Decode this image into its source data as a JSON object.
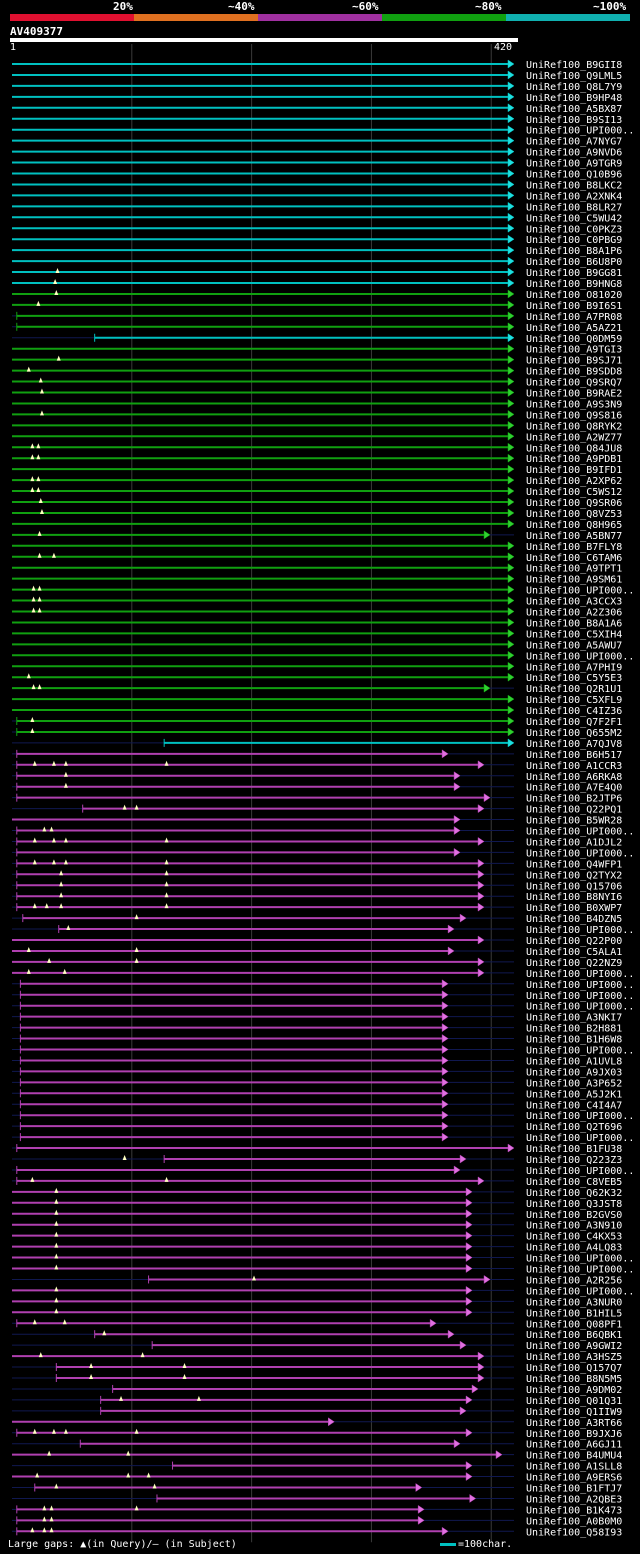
{
  "legend": {
    "labels": [
      "20%",
      "~40%",
      "~60%",
      "~80%",
      "~100%"
    ],
    "colors": [
      "#e01030",
      "#e07020",
      "#a030a0",
      "#10a010",
      "#10b0b0"
    ]
  },
  "query": {
    "name": "AV409377",
    "start": "1",
    "end": "420"
  },
  "footer": {
    "gaps": "Large gaps: ▲(in Query)/— (in Subject)",
    "scale": "=100char."
  },
  "chart_data": {
    "type": "alignment-overview",
    "query_length": 420,
    "color_key": {
      "c": "~100%",
      "g": "~80%",
      "m": "~60%"
    },
    "hits": [
      {
        "name": "UniRef100_B9GII8",
        "s": 1,
        "e": 420,
        "c": "c",
        "ins": []
      },
      {
        "name": "UniRef100_Q9LML5",
        "s": 1,
        "e": 420,
        "c": "c",
        "ins": []
      },
      {
        "name": "UniRef100_Q8L7Y9",
        "s": 1,
        "e": 420,
        "c": "c",
        "ins": []
      },
      {
        "name": "UniRef100_B9HP48",
        "s": 1,
        "e": 420,
        "c": "c",
        "ins": []
      },
      {
        "name": "UniRef100_A5BX87",
        "s": 1,
        "e": 420,
        "c": "c",
        "ins": []
      },
      {
        "name": "UniRef100_B9SI13",
        "s": 1,
        "e": 420,
        "c": "c",
        "ins": []
      },
      {
        "name": "UniRef100_UPI000..",
        "s": 1,
        "e": 420,
        "c": "c",
        "ins": []
      },
      {
        "name": "UniRef100_A7NYG7",
        "s": 1,
        "e": 420,
        "c": "c",
        "ins": []
      },
      {
        "name": "UniRef100_A9NVD6",
        "s": 1,
        "e": 420,
        "c": "c",
        "ins": []
      },
      {
        "name": "UniRef100_A9TGR9",
        "s": 1,
        "e": 420,
        "c": "c",
        "ins": []
      },
      {
        "name": "UniRef100_Q10B96",
        "s": 1,
        "e": 420,
        "c": "c",
        "ins": []
      },
      {
        "name": "UniRef100_B8LKC2",
        "s": 1,
        "e": 420,
        "c": "c",
        "ins": []
      },
      {
        "name": "UniRef100_A2XNK4",
        "s": 1,
        "e": 420,
        "c": "c",
        "ins": []
      },
      {
        "name": "UniRef100_B8LR27",
        "s": 1,
        "e": 420,
        "c": "c",
        "ins": []
      },
      {
        "name": "UniRef100_C5WU42",
        "s": 1,
        "e": 420,
        "c": "c",
        "ins": []
      },
      {
        "name": "UniRef100_C0PKZ3",
        "s": 1,
        "e": 420,
        "c": "c",
        "ins": []
      },
      {
        "name": "UniRef100_C0PBG9",
        "s": 1,
        "e": 420,
        "c": "c",
        "ins": []
      },
      {
        "name": "UniRef100_B8A1P6",
        "s": 1,
        "e": 420,
        "c": "c",
        "ins": []
      },
      {
        "name": "UniRef100_B6U8P0",
        "s": 1,
        "e": 420,
        "c": "c",
        "ins": []
      },
      {
        "name": "UniRef100_B9GG81",
        "s": 1,
        "e": 420,
        "c": "c",
        "ins": [
          39
        ]
      },
      {
        "name": "UniRef100_B9HNG8",
        "s": 1,
        "e": 420,
        "c": "c",
        "ins": [
          37
        ]
      },
      {
        "name": "UniRef100_O81020",
        "s": 1,
        "e": 420,
        "c": "g",
        "ins": [
          38
        ]
      },
      {
        "name": "UniRef100_B9I6S1",
        "s": 1,
        "e": 420,
        "c": "g",
        "ins": [
          23
        ]
      },
      {
        "name": "UniRef100_A7PR08",
        "s": 5,
        "e": 420,
        "c": "g",
        "ins": []
      },
      {
        "name": "UniRef100_A5AZ21",
        "s": 5,
        "e": 420,
        "c": "g",
        "ins": []
      },
      {
        "name": "UniRef100_Q0DM59",
        "s": 70,
        "e": 420,
        "c": "c",
        "ins": []
      },
      {
        "name": "UniRef100_A9TGI3",
        "s": 1,
        "e": 420,
        "c": "g",
        "ins": []
      },
      {
        "name": "UniRef100_B9SJ71",
        "s": 1,
        "e": 420,
        "c": "g",
        "ins": [
          40
        ]
      },
      {
        "name": "UniRef100_B9SDD8",
        "s": 1,
        "e": 420,
        "c": "g",
        "ins": [
          15
        ]
      },
      {
        "name": "UniRef100_Q9SRQ7",
        "s": 1,
        "e": 420,
        "c": "g",
        "ins": [
          25
        ]
      },
      {
        "name": "UniRef100_B9RAE2",
        "s": 1,
        "e": 420,
        "c": "g",
        "ins": [
          26
        ]
      },
      {
        "name": "UniRef100_A9S3N9",
        "s": 1,
        "e": 420,
        "c": "g",
        "ins": []
      },
      {
        "name": "UniRef100_Q9S816",
        "s": 1,
        "e": 420,
        "c": "g",
        "ins": [
          26
        ]
      },
      {
        "name": "UniRef100_Q8RYK2",
        "s": 1,
        "e": 420,
        "c": "g",
        "ins": []
      },
      {
        "name": "UniRef100_A2WZ77",
        "s": 1,
        "e": 420,
        "c": "g",
        "ins": []
      },
      {
        "name": "UniRef100_Q84JU8",
        "s": 1,
        "e": 420,
        "c": "g",
        "ins": [
          18,
          23
        ]
      },
      {
        "name": "UniRef100_A9PDB1",
        "s": 1,
        "e": 420,
        "c": "g",
        "ins": [
          18,
          23
        ]
      },
      {
        "name": "UniRef100_B9IFD1",
        "s": 1,
        "e": 420,
        "c": "g",
        "ins": []
      },
      {
        "name": "UniRef100_A2XP62",
        "s": 1,
        "e": 420,
        "c": "g",
        "ins": [
          18,
          23
        ]
      },
      {
        "name": "UniRef100_C5WS12",
        "s": 1,
        "e": 420,
        "c": "g",
        "ins": [
          18,
          23
        ]
      },
      {
        "name": "UniRef100_Q9SR06",
        "s": 1,
        "e": 420,
        "c": "g",
        "ins": [
          25
        ]
      },
      {
        "name": "UniRef100_Q8VZ53",
        "s": 1,
        "e": 420,
        "c": "g",
        "ins": [
          26
        ]
      },
      {
        "name": "UniRef100_Q8H965",
        "s": 1,
        "e": 420,
        "c": "g",
        "ins": []
      },
      {
        "name": "UniRef100_A5BN77",
        "s": 1,
        "e": 400,
        "c": "g",
        "ins": [
          24
        ]
      },
      {
        "name": "UniRef100_B7FLY8",
        "s": 1,
        "e": 420,
        "c": "g",
        "ins": []
      },
      {
        "name": "UniRef100_C6TAM6",
        "s": 1,
        "e": 420,
        "c": "g",
        "ins": [
          24,
          36
        ]
      },
      {
        "name": "UniRef100_A9TPT1",
        "s": 1,
        "e": 420,
        "c": "g",
        "ins": []
      },
      {
        "name": "UniRef100_A9SM61",
        "s": 1,
        "e": 420,
        "c": "g",
        "ins": []
      },
      {
        "name": "UniRef100_UPI000..",
        "s": 1,
        "e": 420,
        "c": "g",
        "ins": [
          19,
          24
        ]
      },
      {
        "name": "UniRef100_A3CCX3",
        "s": 1,
        "e": 420,
        "c": "g",
        "ins": [
          19,
          24
        ]
      },
      {
        "name": "UniRef100_A2Z306",
        "s": 1,
        "e": 420,
        "c": "g",
        "ins": [
          19,
          24
        ]
      },
      {
        "name": "UniRef100_B8A1A6",
        "s": 1,
        "e": 420,
        "c": "g",
        "ins": []
      },
      {
        "name": "UniRef100_C5XIH4",
        "s": 1,
        "e": 420,
        "c": "g",
        "ins": []
      },
      {
        "name": "UniRef100_A5AWU7",
        "s": 1,
        "e": 420,
        "c": "g",
        "ins": []
      },
      {
        "name": "UniRef100_UPI000..",
        "s": 1,
        "e": 420,
        "c": "g",
        "ins": []
      },
      {
        "name": "UniRef100_A7PHI9",
        "s": 1,
        "e": 420,
        "c": "g",
        "ins": []
      },
      {
        "name": "UniRef100_C5Y5E3",
        "s": 1,
        "e": 420,
        "c": "g",
        "ins": [
          15
        ]
      },
      {
        "name": "UniRef100_Q2R1U1",
        "s": 1,
        "e": 400,
        "c": "g",
        "ins": [
          19,
          24
        ]
      },
      {
        "name": "UniRef100_C5XFL9",
        "s": 1,
        "e": 420,
        "c": "g",
        "ins": []
      },
      {
        "name": "UniRef100_C4IZ36",
        "s": 1,
        "e": 420,
        "c": "g",
        "ins": []
      },
      {
        "name": "UniRef100_Q7F2F1",
        "s": 5,
        "e": 420,
        "c": "g",
        "ins": [
          18
        ]
      },
      {
        "name": "UniRef100_Q655M2",
        "s": 5,
        "e": 420,
        "c": "g",
        "ins": [
          18
        ]
      },
      {
        "name": "UniRef100_A7QJV8",
        "s": 128,
        "e": 420,
        "c": "c",
        "ins": []
      },
      {
        "name": "UniRef100_B6H517",
        "s": 5,
        "e": 365,
        "c": "m",
        "ins": []
      },
      {
        "name": "UniRef100_A1CCR3",
        "s": 5,
        "e": 395,
        "c": "m",
        "ins": [
          20,
          36,
          46,
          130
        ]
      },
      {
        "name": "UniRef100_A6RKA8",
        "s": 5,
        "e": 375,
        "c": "m",
        "ins": [
          46
        ]
      },
      {
        "name": "UniRef100_A7E4Q0",
        "s": 5,
        "e": 375,
        "c": "m",
        "ins": [
          46
        ]
      },
      {
        "name": "UniRef100_B2JTP6",
        "s": 5,
        "e": 400,
        "c": "m",
        "ins": []
      },
      {
        "name": "UniRef100_Q22PQ1",
        "s": 60,
        "e": 395,
        "c": "m",
        "ins": [
          95,
          105
        ]
      },
      {
        "name": "UniRef100_B5WR28",
        "s": 1,
        "e": 375,
        "c": "m",
        "ins": []
      },
      {
        "name": "UniRef100_UPI000..",
        "s": 5,
        "e": 375,
        "c": "m",
        "ins": [
          28,
          34
        ]
      },
      {
        "name": "UniRef100_A1DJL2",
        "s": 5,
        "e": 395,
        "c": "m",
        "ins": [
          20,
          36,
          46,
          130
        ]
      },
      {
        "name": "UniRef100_UPI000..",
        "s": 5,
        "e": 375,
        "c": "m",
        "ins": []
      },
      {
        "name": "UniRef100_Q4WFP1",
        "s": 5,
        "e": 395,
        "c": "m",
        "ins": [
          20,
          36,
          46,
          130
        ]
      },
      {
        "name": "UniRef100_Q2TYX2",
        "s": 5,
        "e": 395,
        "c": "m",
        "ins": [
          42,
          130
        ]
      },
      {
        "name": "UniRef100_Q15706",
        "s": 5,
        "e": 395,
        "c": "m",
        "ins": [
          42,
          130
        ]
      },
      {
        "name": "UniRef100_B8NYI6",
        "s": 5,
        "e": 395,
        "c": "m",
        "ins": [
          42,
          130
        ]
      },
      {
        "name": "UniRef100_B0XWP7",
        "s": 5,
        "e": 395,
        "c": "m",
        "ins": [
          20,
          30,
          42,
          130
        ]
      },
      {
        "name": "UniRef100_B4DZN5",
        "s": 10,
        "e": 380,
        "c": "m",
        "ins": [
          105
        ]
      },
      {
        "name": "UniRef100_UPI000..",
        "s": 40,
        "e": 370,
        "c": "m",
        "ins": [
          48
        ]
      },
      {
        "name": "UniRef100_Q22P00",
        "s": 1,
        "e": 395,
        "c": "m",
        "ins": []
      },
      {
        "name": "UniRef100_C5ALA1",
        "s": 1,
        "e": 370,
        "c": "m",
        "ins": [
          15,
          105
        ]
      },
      {
        "name": "UniRef100_Q22NZ9",
        "s": 1,
        "e": 395,
        "c": "m",
        "ins": [
          32,
          105
        ]
      },
      {
        "name": "UniRef100_UPI000..",
        "s": 1,
        "e": 395,
        "c": "m",
        "ins": [
          15,
          45
        ]
      },
      {
        "name": "UniRef100_UPI000..",
        "s": 8,
        "e": 365,
        "c": "m",
        "ins": []
      },
      {
        "name": "UniRef100_UPI000..",
        "s": 8,
        "e": 365,
        "c": "m",
        "ins": []
      },
      {
        "name": "UniRef100_UPI000..",
        "s": 8,
        "e": 365,
        "c": "m",
        "ins": []
      },
      {
        "name": "UniRef100_A3NKI7",
        "s": 8,
        "e": 365,
        "c": "m",
        "ins": []
      },
      {
        "name": "UniRef100_B2H881",
        "s": 8,
        "e": 365,
        "c": "m",
        "ins": []
      },
      {
        "name": "UniRef100_B1H6W8",
        "s": 8,
        "e": 365,
        "c": "m",
        "ins": []
      },
      {
        "name": "UniRef100_UPI000..",
        "s": 8,
        "e": 365,
        "c": "m",
        "ins": []
      },
      {
        "name": "UniRef100_A1UVL8",
        "s": 8,
        "e": 365,
        "c": "m",
        "ins": []
      },
      {
        "name": "UniRef100_A9JX03",
        "s": 8,
        "e": 365,
        "c": "m",
        "ins": []
      },
      {
        "name": "UniRef100_A3P652",
        "s": 8,
        "e": 365,
        "c": "m",
        "ins": []
      },
      {
        "name": "UniRef100_A5J2K1",
        "s": 8,
        "e": 365,
        "c": "m",
        "ins": []
      },
      {
        "name": "UniRef100_C4I4A7",
        "s": 8,
        "e": 365,
        "c": "m",
        "ins": []
      },
      {
        "name": "UniRef100_UPI000..",
        "s": 8,
        "e": 365,
        "c": "m",
        "ins": []
      },
      {
        "name": "UniRef100_Q2T696",
        "s": 8,
        "e": 365,
        "c": "m",
        "ins": []
      },
      {
        "name": "UniRef100_UPI000..",
        "s": 8,
        "e": 365,
        "c": "m",
        "ins": []
      },
      {
        "name": "UniRef100_B1FU38",
        "s": 5,
        "e": 420,
        "c": "m",
        "ins": []
      },
      {
        "name": "UniRef100_Q223Z3",
        "s": 128,
        "e": 380,
        "c": "m",
        "ins": [
          95
        ]
      },
      {
        "name": "UniRef100_UPI000..",
        "s": 5,
        "e": 375,
        "c": "m",
        "ins": []
      },
      {
        "name": "UniRef100_C8VEB5",
        "s": 5,
        "e": 395,
        "c": "m",
        "ins": [
          18,
          130
        ]
      },
      {
        "name": "UniRef100_Q62K32",
        "s": 1,
        "e": 385,
        "c": "m",
        "ins": [
          38
        ]
      },
      {
        "name": "UniRef100_Q3JST8",
        "s": 1,
        "e": 385,
        "c": "m",
        "ins": [
          38
        ]
      },
      {
        "name": "UniRef100_B2GVS0",
        "s": 1,
        "e": 385,
        "c": "m",
        "ins": [
          38
        ]
      },
      {
        "name": "UniRef100_A3N910",
        "s": 1,
        "e": 385,
        "c": "m",
        "ins": [
          38
        ]
      },
      {
        "name": "UniRef100_C4KX53",
        "s": 1,
        "e": 385,
        "c": "m",
        "ins": [
          38
        ]
      },
      {
        "name": "UniRef100_A4LQ83",
        "s": 1,
        "e": 385,
        "c": "m",
        "ins": [
          38
        ]
      },
      {
        "name": "UniRef100_UPI000..",
        "s": 1,
        "e": 385,
        "c": "m",
        "ins": [
          38
        ]
      },
      {
        "name": "UniRef100_UPI000..",
        "s": 1,
        "e": 385,
        "c": "m",
        "ins": [
          38
        ]
      },
      {
        "name": "UniRef100_A2R256",
        "s": 115,
        "e": 400,
        "c": "m",
        "ins": [
          203
        ]
      },
      {
        "name": "UniRef100_UPI000..",
        "s": 1,
        "e": 385,
        "c": "m",
        "ins": [
          38
        ]
      },
      {
        "name": "UniRef100_A3NUR0",
        "s": 1,
        "e": 385,
        "c": "m",
        "ins": [
          38
        ]
      },
      {
        "name": "UniRef100_B1HIL5",
        "s": 1,
        "e": 385,
        "c": "m",
        "ins": [
          38
        ]
      },
      {
        "name": "UniRef100_Q08PF1",
        "s": 5,
        "e": 355,
        "c": "m",
        "ins": [
          20,
          45
        ]
      },
      {
        "name": "UniRef100_B6QBK1",
        "s": 70,
        "e": 370,
        "c": "m",
        "ins": [
          78
        ]
      },
      {
        "name": "UniRef100_A9GWI2",
        "s": 118,
        "e": 380,
        "c": "m",
        "ins": []
      },
      {
        "name": "UniRef100_A3HSZ5",
        "s": 1,
        "e": 395,
        "c": "m",
        "ins": [
          25,
          110
        ]
      },
      {
        "name": "UniRef100_Q157Q7",
        "s": 38,
        "e": 395,
        "c": "m",
        "ins": [
          67,
          145
        ]
      },
      {
        "name": "UniRef100_B8N5M5",
        "s": 38,
        "e": 395,
        "c": "m",
        "ins": [
          67,
          145
        ]
      },
      {
        "name": "UniRef100_A9DM02",
        "s": 85,
        "e": 390,
        "c": "m",
        "ins": []
      },
      {
        "name": "UniRef100_Q01Q31",
        "s": 75,
        "e": 385,
        "c": "m",
        "ins": [
          92,
          157
        ]
      },
      {
        "name": "UniRef100_Q1IIW9",
        "s": 75,
        "e": 380,
        "c": "m",
        "ins": []
      },
      {
        "name": "UniRef100_A3RT66",
        "s": 1,
        "e": 270,
        "c": "m",
        "ins": []
      },
      {
        "name": "UniRef100_B9JXJ6",
        "s": 5,
        "e": 385,
        "c": "m",
        "ins": [
          20,
          36,
          46,
          105
        ]
      },
      {
        "name": "UniRef100_A6GJ11",
        "s": 58,
        "e": 375,
        "c": "m",
        "ins": []
      },
      {
        "name": "UniRef100_B4UMU4",
        "s": 1,
        "e": 410,
        "c": "m",
        "ins": [
          32,
          98
        ]
      },
      {
        "name": "UniRef100_A1SLL8",
        "s": 135,
        "e": 385,
        "c": "m",
        "ins": []
      },
      {
        "name": "UniRef100_A9ERS6",
        "s": 1,
        "e": 385,
        "c": "m",
        "ins": [
          22,
          98,
          115
        ]
      },
      {
        "name": "UniRef100_B1FTJ7",
        "s": 20,
        "e": 343,
        "c": "m",
        "ins": [
          38,
          120
        ]
      },
      {
        "name": "UniRef100_A2QBE3",
        "s": 122,
        "e": 388,
        "c": "m",
        "ins": []
      },
      {
        "name": "UniRef100_B1K473",
        "s": 5,
        "e": 345,
        "c": "m",
        "ins": [
          28,
          34,
          105
        ]
      },
      {
        "name": "UniRef100_A0B0M0",
        "s": 5,
        "e": 345,
        "c": "m",
        "ins": [
          28,
          34
        ]
      },
      {
        "name": "UniRef100_Q58I93",
        "s": 5,
        "e": 365,
        "c": "m",
        "ins": [
          18,
          28,
          34
        ]
      }
    ]
  }
}
